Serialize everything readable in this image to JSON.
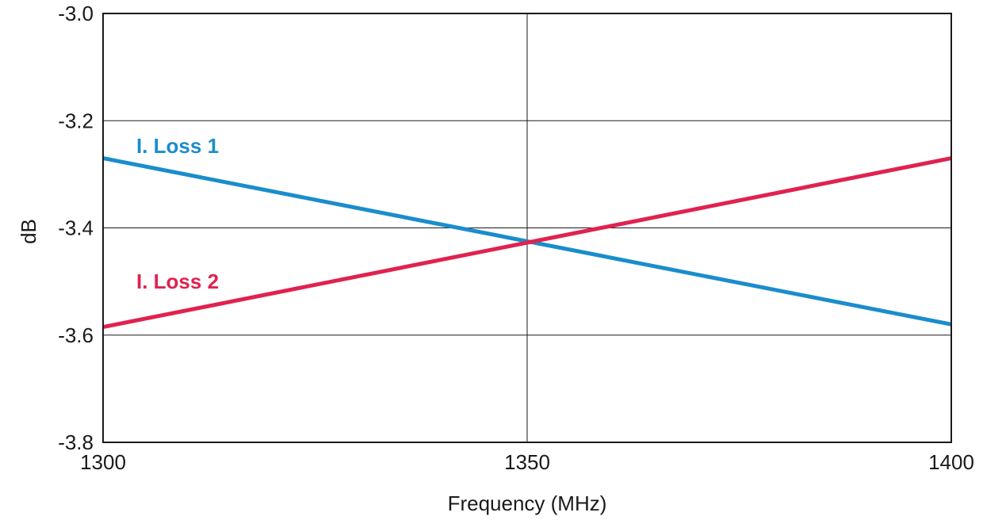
{
  "chart_data": {
    "type": "line",
    "title": "",
    "xlabel": "Frequency (MHz)",
    "ylabel": "dB",
    "xlim": [
      1300,
      1400
    ],
    "ylim": [
      -3.8,
      -3.0
    ],
    "x_ticks": [
      1300,
      1350,
      1400
    ],
    "x_tick_labels": [
      "1300",
      "1350",
      "1400"
    ],
    "y_ticks": [
      -3.0,
      -3.2,
      -3.4,
      -3.6,
      -3.8
    ],
    "y_tick_labels": [
      "-3.0",
      "-3.2",
      "-3.4",
      "-3.6",
      "-3.8"
    ],
    "grid": {
      "x": [
        1350
      ],
      "y": [
        -3.2,
        -3.4,
        -3.6
      ]
    },
    "legend": "inline labels",
    "series": [
      {
        "name": "I. Loss 1",
        "color": "#1a8dcc",
        "x": [
          1300,
          1400
        ],
        "y": [
          -3.27,
          -3.58
        ]
      },
      {
        "name": "I. Loss 2",
        "color": "#e0224f",
        "x": [
          1300,
          1400
        ],
        "y": [
          -3.585,
          -3.27
        ]
      }
    ]
  }
}
